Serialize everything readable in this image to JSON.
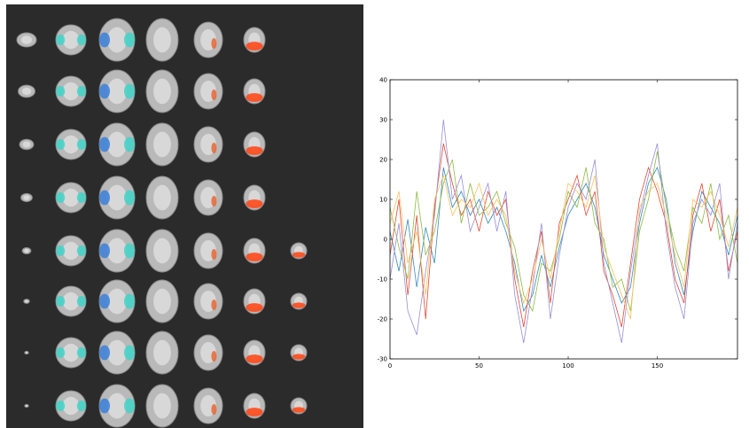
{
  "chart_data": {
    "type": "line",
    "x": [
      0,
      5,
      10,
      15,
      20,
      25,
      30,
      35,
      40,
      45,
      50,
      55,
      60,
      65,
      70,
      75,
      80,
      85,
      90,
      95,
      100,
      105,
      110,
      115,
      120,
      125,
      130,
      135,
      140,
      145,
      150,
      155,
      160,
      165,
      170,
      175,
      180,
      185,
      190,
      195
    ],
    "series": [
      {
        "color": "#348abd",
        "values": [
          2,
          -8,
          5,
          -12,
          3,
          -6,
          18,
          8,
          12,
          6,
          10,
          4,
          8,
          2,
          -6,
          -18,
          -14,
          -4,
          -12,
          -2,
          6,
          10,
          14,
          8,
          -4,
          -10,
          -16,
          -12,
          4,
          14,
          18,
          10,
          -6,
          -14,
          2,
          12,
          8,
          4,
          -4,
          6
        ]
      },
      {
        "color": "#e24a33",
        "values": [
          -4,
          10,
          -14,
          6,
          -20,
          8,
          24,
          14,
          6,
          10,
          2,
          12,
          6,
          10,
          -10,
          -22,
          -8,
          2,
          -16,
          4,
          10,
          16,
          6,
          12,
          -8,
          -14,
          -22,
          -6,
          10,
          18,
          12,
          4,
          -10,
          -16,
          6,
          14,
          2,
          10,
          -8,
          2
        ]
      },
      {
        "color": "#8eba42",
        "values": [
          8,
          -2,
          -10,
          12,
          -4,
          2,
          14,
          20,
          4,
          14,
          6,
          8,
          12,
          4,
          -2,
          -14,
          -18,
          -6,
          -8,
          0,
          12,
          8,
          18,
          4,
          0,
          -12,
          -10,
          -18,
          2,
          10,
          22,
          8,
          -2,
          -8,
          8,
          4,
          14,
          0,
          6,
          -6
        ]
      },
      {
        "color": "#988ed5",
        "values": [
          -10,
          4,
          -18,
          -24,
          -8,
          6,
          30,
          10,
          16,
          2,
          8,
          14,
          2,
          12,
          -14,
          -26,
          -12,
          4,
          -20,
          -4,
          8,
          14,
          10,
          20,
          -6,
          -16,
          -26,
          -8,
          6,
          16,
          24,
          2,
          -12,
          -20,
          4,
          10,
          6,
          14,
          -10,
          4
        ]
      },
      {
        "color": "#fbc15e",
        "values": [
          4,
          12,
          -6,
          2,
          -14,
          10,
          16,
          6,
          10,
          8,
          14,
          6,
          10,
          6,
          -8,
          -16,
          -10,
          0,
          -10,
          2,
          14,
          12,
          8,
          16,
          -2,
          -8,
          -14,
          -20,
          8,
          12,
          14,
          6,
          -4,
          -12,
          10,
          8,
          12,
          6,
          -2,
          8
        ]
      }
    ],
    "xlim": [
      0,
      195
    ],
    "xticks": [
      0,
      50,
      100,
      150
    ],
    "ylim": [
      -30,
      40
    ],
    "yticks": [
      -30,
      -20,
      -10,
      0,
      10,
      20,
      30,
      40
    ]
  }
}
